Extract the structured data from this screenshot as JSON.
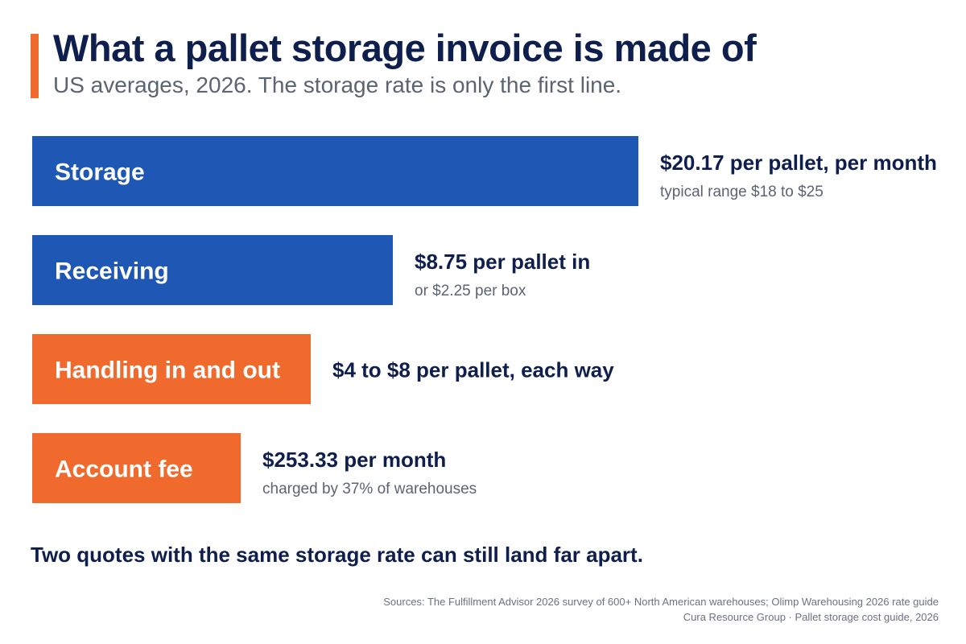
{
  "header": {
    "title": "What a pallet storage invoice is made of",
    "subtitle": "US averages, 2026. The storage rate is only the first line.",
    "accent_color": "#ef6a2c"
  },
  "chart_data": {
    "type": "bar",
    "orientation": "horizontal",
    "grid": false,
    "categories": [
      "Storage",
      "Receiving",
      "Handling in and out",
      "Account fee"
    ],
    "bar_colors": [
      "#1f57b4",
      "#1f57b4",
      "#ef6a2c",
      "#ef6a2c"
    ],
    "label_color": "#0f1f4d",
    "detail_color": "#5b6470",
    "bars": [
      {
        "category": "Storage",
        "relative_length": 1.0,
        "value_label": "$20.17 per pallet, per month",
        "detail": "typical range $18 to $25"
      },
      {
        "category": "Receiving",
        "relative_length": 0.595,
        "value_label": "$8.75 per pallet in",
        "detail": "or $2.25 per box"
      },
      {
        "category": "Handling in and out",
        "relative_length": 0.46,
        "value_label": "$4 to $8 per pallet, each way",
        "detail": ""
      },
      {
        "category": "Account fee",
        "relative_length": 0.344,
        "value_label": "$253.33 per month",
        "detail": "charged by 37% of warehouses"
      }
    ]
  },
  "takeaway": "Two quotes with the same storage rate can still land far apart.",
  "sources": {
    "line1": "Sources: The Fulfillment Advisor 2026 survey of 600+ North American warehouses; Olimp Warehousing 2026 rate guide",
    "line2": "Cura Resource Group · Pallet storage cost guide, 2026"
  }
}
